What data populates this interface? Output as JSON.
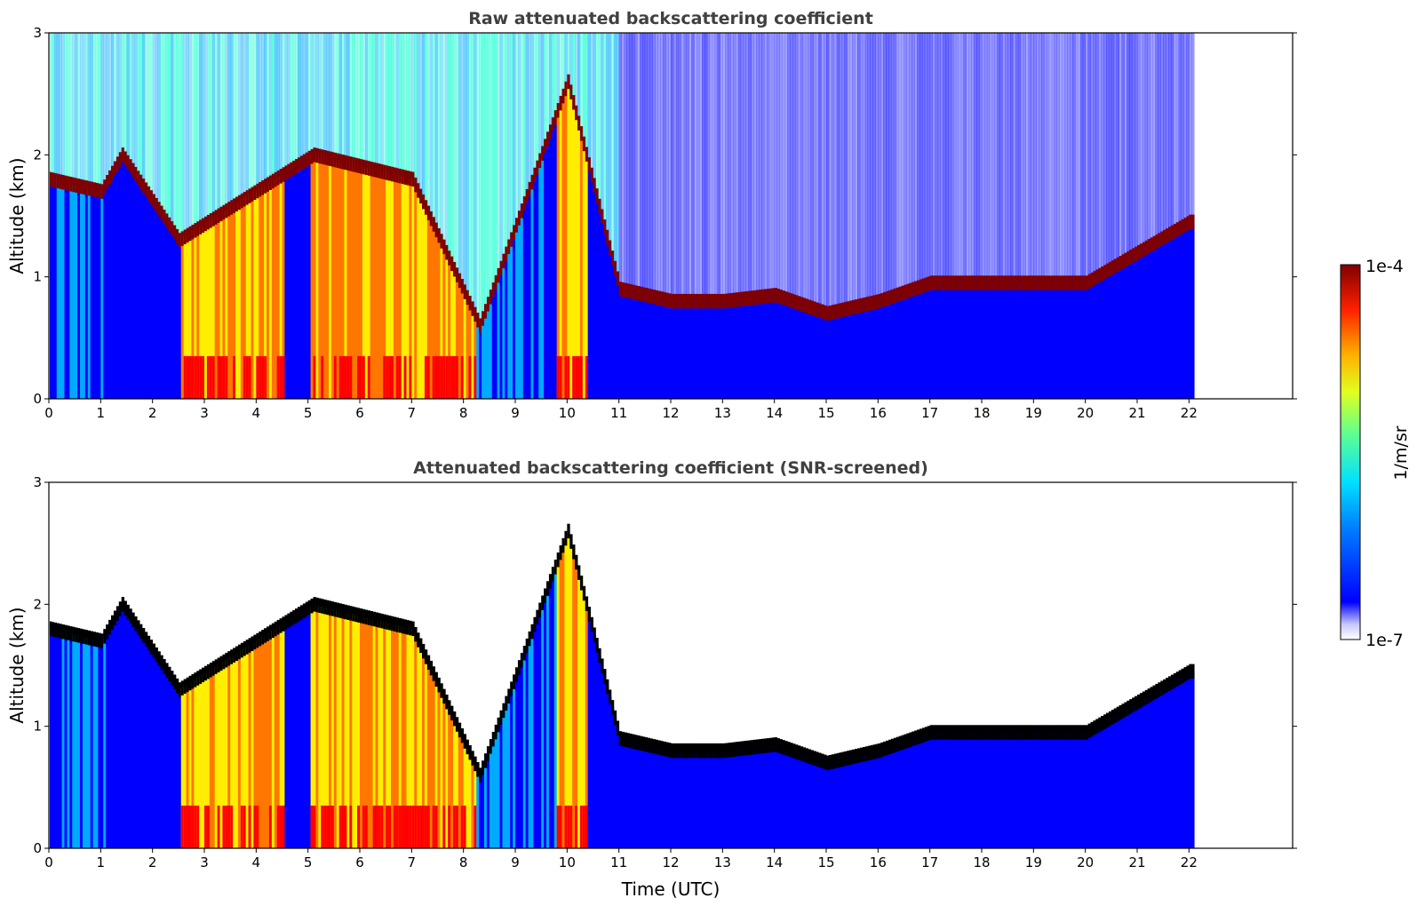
{
  "chart_data": [
    {
      "type": "heatmap",
      "title": "Raw attenuated backscattering coefficient",
      "xlabel": "",
      "ylabel": "Altitude (km)",
      "xlim": [
        0,
        24
      ],
      "ylim": [
        0,
        3
      ],
      "x_ticks": [
        "0",
        "1",
        "2",
        "3",
        "4",
        "5",
        "6",
        "7",
        "8",
        "9",
        "10",
        "11",
        "12",
        "13",
        "14",
        "15",
        "16",
        "17",
        "18",
        "19",
        "20",
        "21",
        "22"
      ],
      "y_ticks": [
        "0",
        "1",
        "2",
        "3"
      ],
      "data_extent_hours": [
        0,
        22.1
      ],
      "screened": false,
      "layer_top_km": [
        {
          "t": 0.0,
          "z": 1.8
        },
        {
          "t": 1.0,
          "z": 1.7
        },
        {
          "t": 1.4,
          "z": 2.0
        },
        {
          "t": 2.5,
          "z": 1.3
        },
        {
          "t": 5.1,
          "z": 2.0
        },
        {
          "t": 7.0,
          "z": 1.8
        },
        {
          "t": 8.3,
          "z": 0.6
        },
        {
          "t": 10.0,
          "z": 2.6
        },
        {
          "t": 11.0,
          "z": 0.9
        },
        {
          "t": 12.0,
          "z": 0.8
        },
        {
          "t": 13.0,
          "z": 0.8
        },
        {
          "t": 14.0,
          "z": 0.85
        },
        {
          "t": 15.0,
          "z": 0.7
        },
        {
          "t": 16.0,
          "z": 0.8
        },
        {
          "t": 17.0,
          "z": 0.95
        },
        {
          "t": 18.0,
          "z": 0.95
        },
        {
          "t": 19.0,
          "z": 0.95
        },
        {
          "t": 20.0,
          "z": 0.95
        },
        {
          "t": 21.0,
          "z": 1.2
        },
        {
          "t": 22.0,
          "z": 1.45
        }
      ]
    },
    {
      "type": "heatmap",
      "title": "Attenuated backscattering coefficient (SNR-screened)",
      "xlabel": "Time (UTC)",
      "ylabel": "Altitude (km)",
      "xlim": [
        0,
        24
      ],
      "ylim": [
        0,
        3
      ],
      "x_ticks": [
        "0",
        "1",
        "2",
        "3",
        "4",
        "5",
        "6",
        "7",
        "8",
        "9",
        "10",
        "11",
        "12",
        "13",
        "14",
        "15",
        "16",
        "17",
        "18",
        "19",
        "20",
        "21",
        "22"
      ],
      "y_ticks": [
        "0",
        "1",
        "2",
        "3"
      ],
      "data_extent_hours": [
        0,
        22.1
      ],
      "screened": true
    }
  ],
  "colorbar": {
    "label": "1/m/sr",
    "max_label": "1e-4",
    "min_label": "1e-7",
    "colormap": "jet",
    "colors": [
      "#ffffff",
      "#0000ff",
      "#00aaff",
      "#00ffcc",
      "#aaff00",
      "#ffee00",
      "#ff7700",
      "#ff0000",
      "#7f0000"
    ]
  }
}
